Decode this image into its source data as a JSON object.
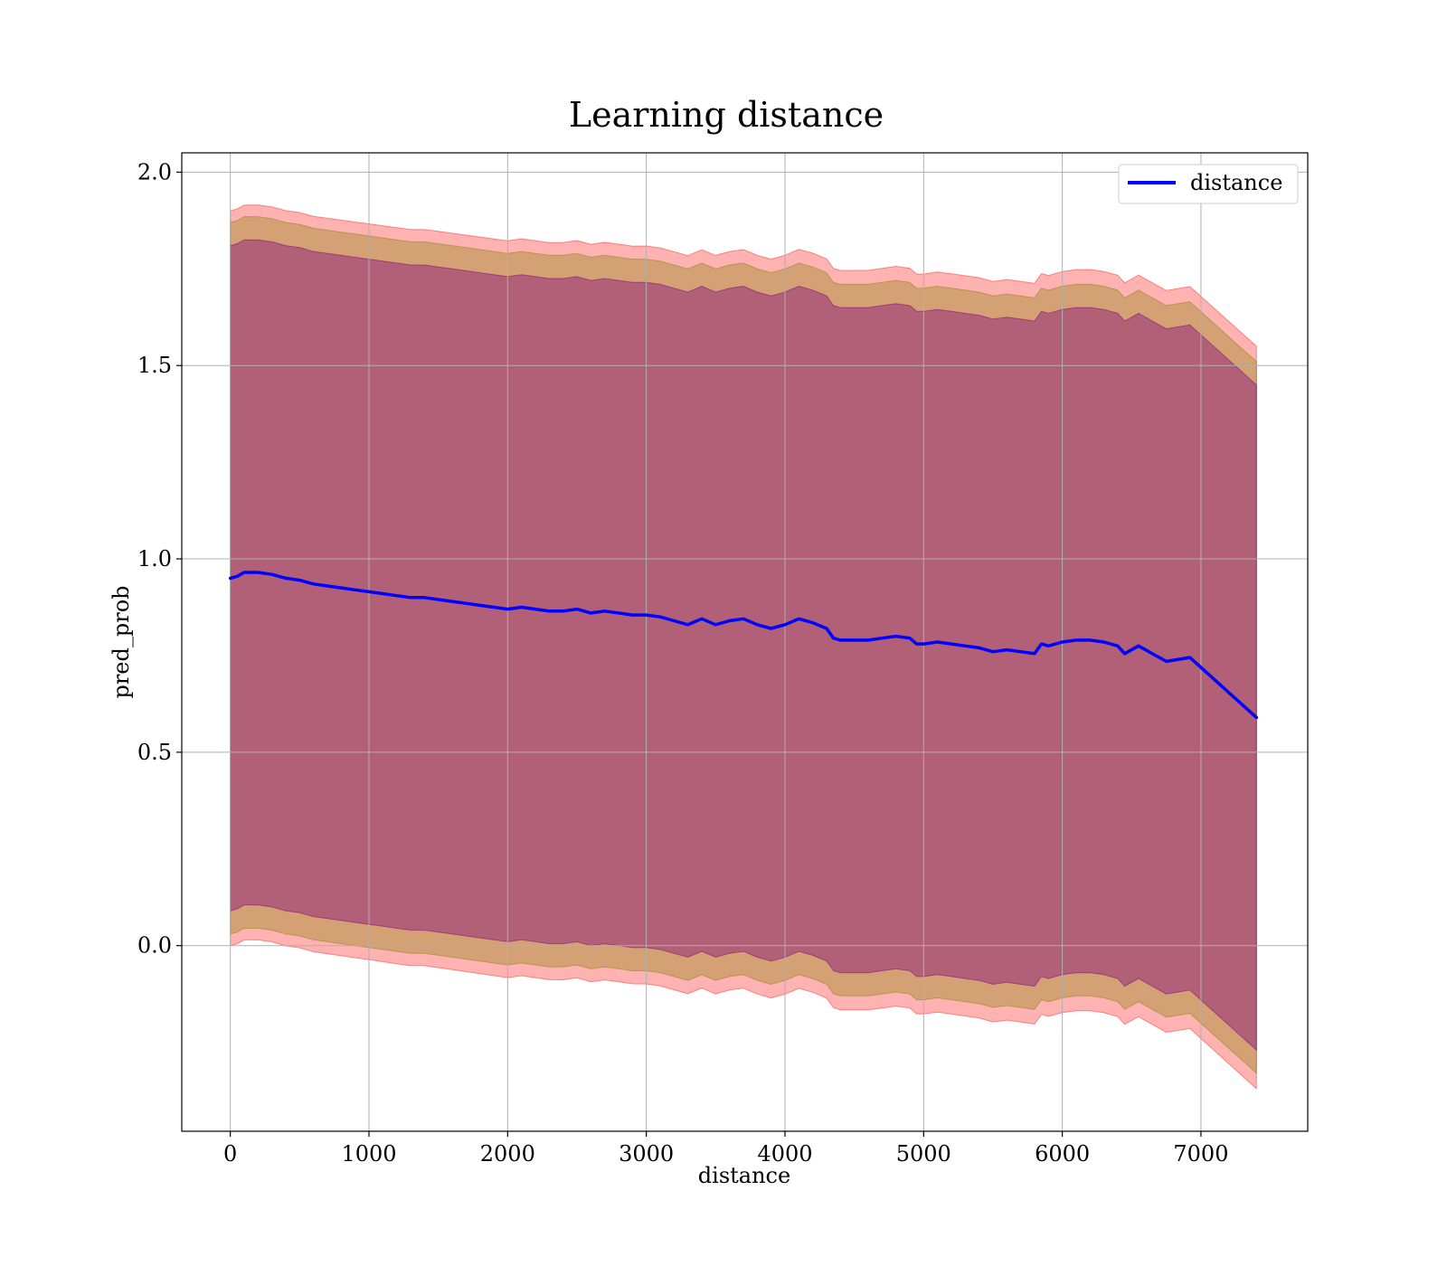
{
  "chart_data": {
    "type": "line",
    "title": "Learning distance",
    "xlabel": "distance",
    "ylabel": "pred_prob",
    "xlim": [
      -350,
      7770
    ],
    "ylim": [
      -0.48,
      2.05
    ],
    "grid": true,
    "legend": {
      "placement": "top-right",
      "entries": [
        "distance"
      ]
    },
    "x_ticks": [
      0,
      1000,
      2000,
      3000,
      4000,
      5000,
      6000,
      7000
    ],
    "x_tick_labels": [
      "0",
      "1000",
      "2000",
      "3000",
      "4000",
      "5000",
      "6000",
      "7000"
    ],
    "y_ticks": [
      0.0,
      0.5,
      1.0,
      1.5,
      2.0
    ],
    "y_tick_labels": [
      "0.0",
      "0.5",
      "1.0",
      "1.5",
      "2.0"
    ],
    "series": [
      {
        "name": "distance",
        "color": "#0000ff",
        "x": [
          0,
          50,
          100,
          200,
          300,
          400,
          500,
          600,
          700,
          800,
          900,
          1000,
          1100,
          1200,
          1300,
          1400,
          1500,
          1600,
          1700,
          1800,
          1900,
          2000,
          2100,
          2200,
          2300,
          2400,
          2500,
          2600,
          2700,
          2800,
          2900,
          3000,
          3100,
          3200,
          3300,
          3400,
          3500,
          3600,
          3700,
          3800,
          3900,
          4000,
          4100,
          4200,
          4300,
          4350,
          4400,
          4500,
          4600,
          4700,
          4800,
          4900,
          4950,
          5000,
          5100,
          5200,
          5300,
          5400,
          5500,
          5600,
          5700,
          5800,
          5850,
          5900,
          6000,
          6100,
          6200,
          6300,
          6400,
          6450,
          6550,
          6750,
          6920,
          7400
        ],
        "values": [
          0.95,
          0.955,
          0.965,
          0.965,
          0.96,
          0.95,
          0.945,
          0.935,
          0.93,
          0.925,
          0.92,
          0.915,
          0.91,
          0.905,
          0.9,
          0.9,
          0.895,
          0.89,
          0.885,
          0.88,
          0.875,
          0.87,
          0.875,
          0.87,
          0.865,
          0.865,
          0.87,
          0.86,
          0.865,
          0.86,
          0.855,
          0.855,
          0.85,
          0.84,
          0.83,
          0.845,
          0.83,
          0.84,
          0.845,
          0.83,
          0.82,
          0.83,
          0.845,
          0.835,
          0.82,
          0.795,
          0.79,
          0.79,
          0.79,
          0.795,
          0.8,
          0.795,
          0.78,
          0.78,
          0.785,
          0.78,
          0.775,
          0.77,
          0.76,
          0.765,
          0.76,
          0.755,
          0.78,
          0.775,
          0.785,
          0.79,
          0.79,
          0.785,
          0.775,
          0.755,
          0.775,
          0.735,
          0.745,
          0.59
        ]
      }
    ],
    "bands": [
      {
        "color": "#ff0000",
        "opacity": 0.3,
        "half_width_start": 0.95,
        "half_width_end": 0.96
      },
      {
        "color": "#808000",
        "opacity": 0.35,
        "half_width_start": 0.92,
        "half_width_end": 0.92
      },
      {
        "color": "#800080",
        "opacity": 0.4,
        "half_width_start": 0.86,
        "half_width_end": 0.86
      }
    ]
  }
}
